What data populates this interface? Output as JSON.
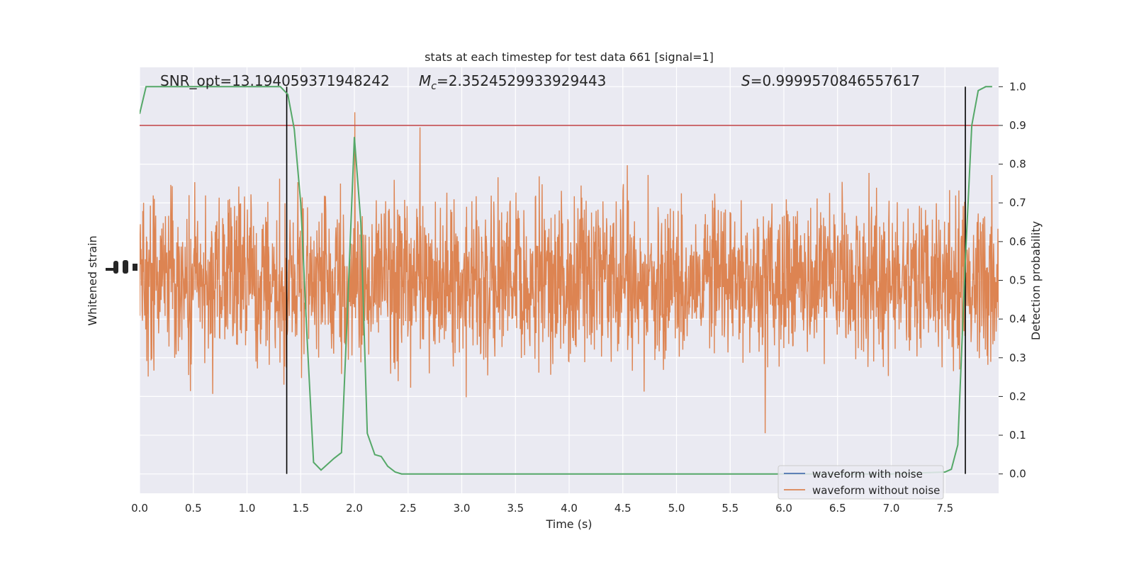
{
  "chart_data": {
    "type": "line",
    "title": "stats at each timestep for test data 661 [signal=1]",
    "xlabel": "Time (s)",
    "ylabel_left": "Whitened strain",
    "ylabel_right": "Detection probability",
    "xlim": [
      0.0,
      8.0
    ],
    "y_right_lim": [
      -0.05,
      1.05
    ],
    "x_ticks": [
      "0.0",
      "0.5",
      "1.0",
      "1.5",
      "2.0",
      "2.5",
      "3.0",
      "3.5",
      "4.0",
      "4.5",
      "5.0",
      "5.5",
      "6.0",
      "6.5",
      "7.0",
      "7.5"
    ],
    "y_right_ticks": [
      "0.0",
      "0.1",
      "0.2",
      "0.3",
      "0.4",
      "0.5",
      "0.6",
      "0.7",
      "0.8",
      "0.9",
      "1.0"
    ],
    "grid": true,
    "annotations": {
      "snr": "SNR_opt=13.194059371948242",
      "mc_symbol": "M",
      "mc_sub": "c",
      "mc_value": "=2.3524529933929443",
      "s_symbol": "S",
      "s_value": "=0.9999570846557617"
    },
    "threshold": 0.9,
    "vlines": [
      1.37,
      7.69
    ],
    "legend": {
      "position": "bottom-right",
      "entries": [
        "waveform with noise",
        "waveform without noise"
      ]
    },
    "series": [
      {
        "name": "Detection probability",
        "color": "#55a868",
        "x": [
          0.0,
          0.06,
          0.13,
          0.25,
          0.5,
          0.75,
          1.0,
          1.12,
          1.25,
          1.31,
          1.38,
          1.44,
          1.5,
          1.56,
          1.62,
          1.69,
          1.75,
          1.81,
          1.88,
          1.94,
          2.0,
          2.06,
          2.12,
          2.19,
          2.25,
          2.31,
          2.38,
          2.44,
          2.5,
          3.0,
          3.5,
          4.0,
          4.5,
          5.0,
          5.5,
          6.0,
          6.5,
          7.0,
          7.5,
          7.56,
          7.62,
          7.69,
          7.75,
          7.81,
          7.88,
          7.94
        ],
        "y": [
          0.93,
          1.0,
          1.0,
          1.0,
          1.0,
          1.0,
          1.0,
          1.0,
          1.0,
          1.0,
          0.98,
          0.89,
          0.7,
          0.35,
          0.03,
          0.01,
          0.025,
          0.04,
          0.055,
          0.45,
          0.87,
          0.65,
          0.105,
          0.05,
          0.045,
          0.02,
          0.005,
          0.0,
          0.0,
          0.0,
          0.0,
          0.0,
          0.0,
          0.0,
          0.0,
          0.0,
          0.0,
          0.0,
          0.005,
          0.012,
          0.075,
          0.55,
          0.9,
          0.99,
          1.0,
          1.0
        ]
      }
    ],
    "colors": {
      "plot_bg": "#eaeaf2",
      "noise_wave": "#dd8452",
      "clean_wave": "#4c72b0",
      "threshold_line": "#c44e52",
      "vline": "#000000"
    }
  }
}
